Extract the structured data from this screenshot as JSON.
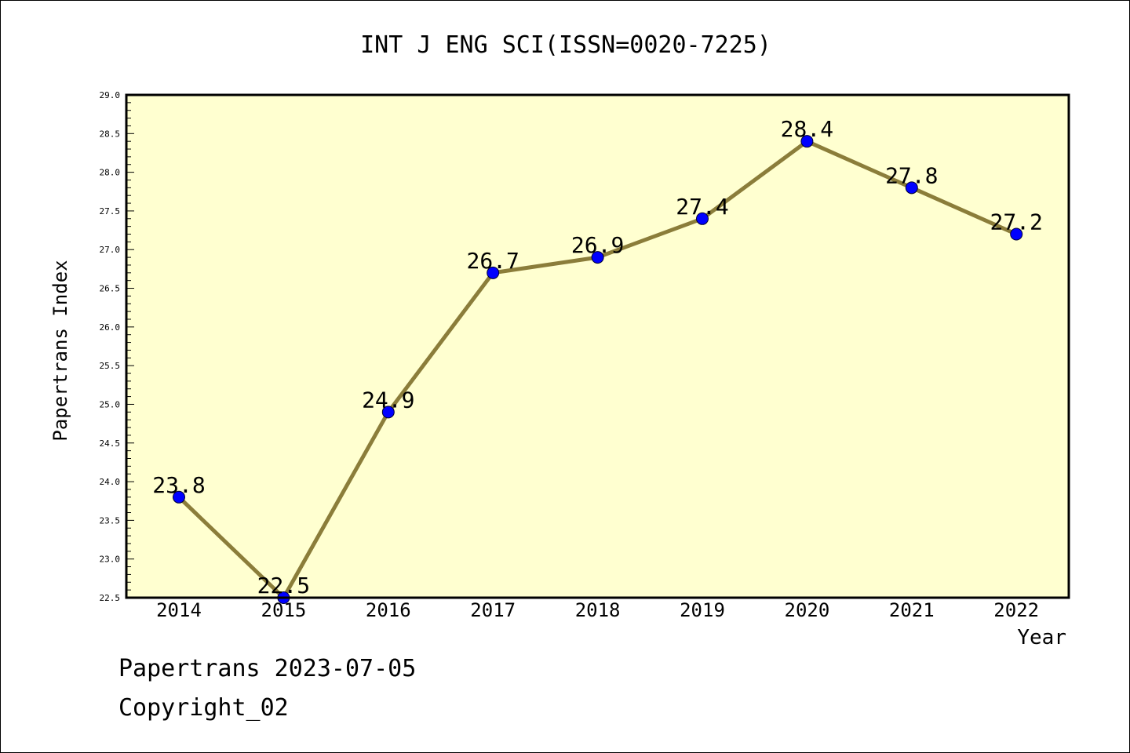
{
  "chart_data": {
    "type": "line",
    "title": "INT J ENG SCI(ISSN=0020-7225)",
    "xlabel": "Year",
    "ylabel": "Papertrans Index",
    "categories": [
      "2014",
      "2015",
      "2016",
      "2017",
      "2018",
      "2019",
      "2020",
      "2021",
      "2022"
    ],
    "series": [
      {
        "values": [
          23.8,
          22.5,
          24.9,
          26.7,
          26.9,
          27.4,
          28.4,
          27.8,
          27.2
        ]
      }
    ],
    "data_labels": [
      "23.8",
      "22.5",
      "24.9",
      "26.7",
      "26.9",
      "27.4",
      "28.4",
      "27.8",
      "27.2"
    ],
    "ylim": [
      22.5,
      29.0
    ],
    "yticks": [
      "22.5",
      "23.0",
      "23.5",
      "24.0",
      "24.5",
      "25.0",
      "25.5",
      "26.0",
      "26.5",
      "27.0",
      "27.5",
      "28.0",
      "28.5",
      "29.0"
    ],
    "grid": false,
    "legend": "none",
    "colors": {
      "plot_background": "#ffffd0",
      "line": "#8b7d3a",
      "marker": "#0000ff"
    }
  },
  "footer": {
    "line1": "Papertrans 2023-07-05",
    "line2": "Copyright_02"
  }
}
